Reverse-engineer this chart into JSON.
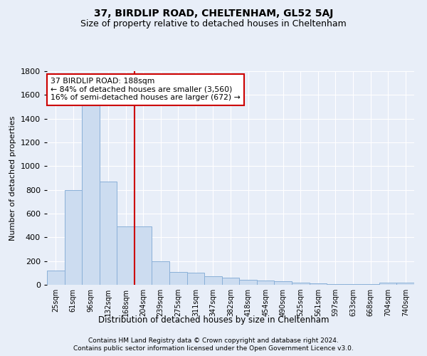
{
  "title": "37, BIRDLIP ROAD, CHELTENHAM, GL52 5AJ",
  "subtitle": "Size of property relative to detached houses in Cheltenham",
  "xlabel": "Distribution of detached houses by size in Cheltenham",
  "ylabel": "Number of detached properties",
  "footnote1": "Contains HM Land Registry data © Crown copyright and database right 2024.",
  "footnote2": "Contains public sector information licensed under the Open Government Licence v3.0.",
  "bin_labels": [
    "25sqm",
    "61sqm",
    "96sqm",
    "132sqm",
    "168sqm",
    "204sqm",
    "239sqm",
    "275sqm",
    "311sqm",
    "347sqm",
    "382sqm",
    "418sqm",
    "454sqm",
    "490sqm",
    "525sqm",
    "561sqm",
    "597sqm",
    "633sqm",
    "668sqm",
    "704sqm",
    "740sqm"
  ],
  "bar_heights": [
    120,
    800,
    1520,
    870,
    490,
    490,
    200,
    110,
    105,
    70,
    60,
    40,
    35,
    30,
    20,
    10,
    8,
    5,
    5,
    20,
    20
  ],
  "bar_color": "#ccdcf0",
  "bar_edge_color": "#8ab0d8",
  "red_line_index": 5,
  "annotation_line1": "37 BIRDLIP ROAD: 188sqm",
  "annotation_line2": "← 84% of detached houses are smaller (3,560)",
  "annotation_line3": "16% of semi-detached houses are larger (672) →",
  "annotation_box_facecolor": "#ffffff",
  "annotation_box_edgecolor": "#cc0000",
  "ylim_max": 1800,
  "background_color": "#e8eef8",
  "grid_color": "#ffffff",
  "title_fontsize": 10,
  "subtitle_fontsize": 9
}
